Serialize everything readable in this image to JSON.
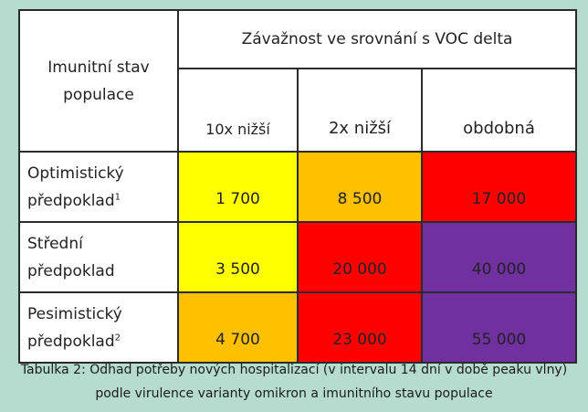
{
  "table": {
    "corner_line1": "Imunitní stav",
    "corner_line2": "populace",
    "severity_header": "Závažnost ve srovnání s VOC delta",
    "columns": [
      {
        "label": "10x nižší"
      },
      {
        "label": "2x nižší"
      },
      {
        "label": "obdobná"
      }
    ],
    "rows": [
      {
        "line1": "Optimistický",
        "line2": "předpoklad",
        "footnote": "1",
        "cells": [
          {
            "value": "1 700",
            "color": "#ffff00"
          },
          {
            "value": "8 500",
            "color": "#ffc000"
          },
          {
            "value": "17 000",
            "color": "#ff0000"
          }
        ]
      },
      {
        "line1": "Střední",
        "line2": "předpoklad",
        "footnote": "",
        "cells": [
          {
            "value": "3 500",
            "color": "#ffff00"
          },
          {
            "value": "20 000",
            "color": "#ff0000"
          },
          {
            "value": "40 000",
            "color": "#7030a0"
          }
        ]
      },
      {
        "line1": "Pesimistický",
        "line2": "předpoklad",
        "footnote": "2",
        "cells": [
          {
            "value": "4 700",
            "color": "#ffc000"
          },
          {
            "value": "23 000",
            "color": "#ff0000"
          },
          {
            "value": "55 000",
            "color": "#7030a0"
          }
        ]
      }
    ]
  },
  "caption": {
    "line1": "Tabulka 2: Odhad potřeby nových hospitalizací (v intervalu 14 dní v době peaku vlny)",
    "line2": "podle virulence varianty omikron a imunitního stavu populace"
  }
}
